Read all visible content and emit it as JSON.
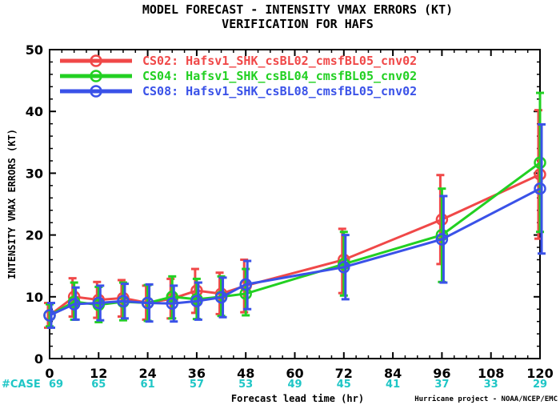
{
  "chart_data": {
    "type": "line",
    "title": "MODEL FORECAST - INTENSITY VMAX ERRORS (KT)",
    "subtitle": "VERIFICATION FOR HAFS",
    "xlabel": "Forecast lead time (hr)",
    "ylabel": "INTENSITY VMAX ERRORS (KT)",
    "xlim": [
      0,
      120
    ],
    "ylim": [
      0,
      50
    ],
    "x_ticks": [
      0,
      12,
      24,
      36,
      48,
      60,
      72,
      84,
      96,
      108,
      120
    ],
    "y_ticks": [
      0,
      10,
      20,
      30,
      40,
      50
    ],
    "grid": false,
    "legend_position": "top-left",
    "x": [
      0,
      6,
      12,
      18,
      24,
      30,
      36,
      42,
      48,
      72,
      96,
      120
    ],
    "series": [
      {
        "name": "CS02: Hafsv1_SHK_csBL02_cmsfBL05_cnv02",
        "color": "#f04848",
        "values": [
          7.0,
          10.0,
          9.5,
          9.8,
          9.0,
          9.7,
          11.0,
          10.5,
          11.8,
          16.0,
          22.5,
          29.8
        ],
        "error_low": [
          5.0,
          6.8,
          6.6,
          6.8,
          6.3,
          6.5,
          7.4,
          7.2,
          7.5,
          10.6,
          15.3,
          19.4
        ],
        "error_high": [
          9.0,
          13.0,
          12.4,
          12.7,
          11.8,
          12.9,
          14.5,
          13.9,
          16.0,
          21.0,
          29.7,
          40.2
        ]
      },
      {
        "name": "CS04: Hafsv1_SHK_csBL04_cmsfBL05_cnv02",
        "color": "#22d022",
        "values": [
          7.0,
          9.2,
          8.7,
          9.2,
          9.0,
          10.0,
          9.6,
          10.0,
          10.5,
          15.3,
          20.0,
          31.7
        ],
        "error_low": [
          5.2,
          6.3,
          5.9,
          6.2,
          6.1,
          6.5,
          6.4,
          6.9,
          7.0,
          10.2,
          12.4,
          20.5
        ],
        "error_high": [
          8.8,
          12.3,
          11.6,
          12.3,
          11.9,
          13.3,
          12.9,
          13.3,
          14.5,
          20.5,
          27.5,
          43.0
        ]
      },
      {
        "name": "CS08: Hafsv1_SHK_csBL08_cmsfBL05_cnv02",
        "color": "#3a52e8",
        "values": [
          7.0,
          8.8,
          9.0,
          9.3,
          9.0,
          8.9,
          9.3,
          9.9,
          12.0,
          14.8,
          19.3,
          27.5
        ],
        "error_low": [
          5.0,
          6.3,
          6.2,
          6.5,
          6.0,
          6.0,
          6.3,
          6.7,
          8.0,
          9.6,
          12.3,
          17.0
        ],
        "error_high": [
          9.0,
          11.5,
          11.8,
          12.1,
          12.0,
          11.8,
          12.3,
          13.1,
          15.8,
          20.0,
          26.3,
          37.9
        ]
      }
    ],
    "case_label": "#CASE",
    "case_counts": [
      {
        "x": 0,
        "count": "69"
      },
      {
        "x": 12,
        "count": "65"
      },
      {
        "x": 24,
        "count": "61"
      },
      {
        "x": 36,
        "count": "57"
      },
      {
        "x": 48,
        "count": "53"
      },
      {
        "x": 60,
        "count": "49"
      },
      {
        "x": 72,
        "count": "45"
      },
      {
        "x": 84,
        "count": "41"
      },
      {
        "x": 96,
        "count": "37"
      },
      {
        "x": 108,
        "count": "33"
      },
      {
        "x": 120,
        "count": "29"
      }
    ],
    "credit": "Hurricane project - NOAA/NCEP/EMC"
  }
}
